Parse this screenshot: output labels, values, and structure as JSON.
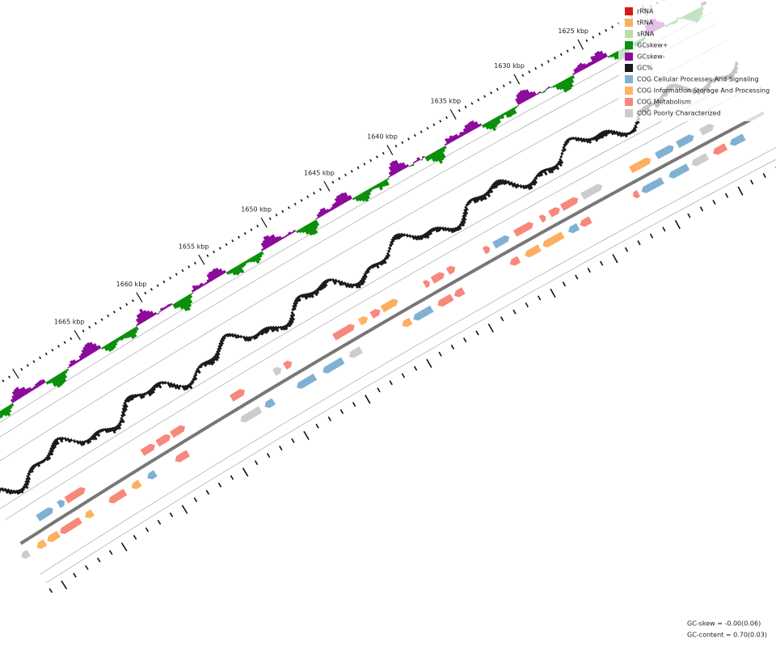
{
  "scale_labels": [
    "1625 kbp",
    "1630 kbp",
    "1635 kbp",
    "1640 kbp",
    "1645 kbp",
    "1650 kbp",
    "1655 kbp",
    "1660 kbp",
    "1665 kbp"
  ],
  "legend": [
    {
      "label": "rRNA",
      "color": "#d7191c"
    },
    {
      "label": "tRNA",
      "color": "#fdae61"
    },
    {
      "label": "sRNA",
      "color": "#b8e0a0"
    },
    {
      "label": "GCskew+",
      "color": "#0a8f0a"
    },
    {
      "label": "GCskew-",
      "color": "#8b0a9a"
    },
    {
      "label": "GC%",
      "color": "#1a1a1a"
    },
    {
      "label": "COG Cellular Processes And Signaling",
      "color": "#80b1d3"
    },
    {
      "label": "COG Information Storage And Processing",
      "color": "#fdb462"
    },
    {
      "label": "COG Metabolism",
      "color": "#f8877c"
    },
    {
      "label": "COG Poorly Characterized",
      "color": "#cccccc"
    }
  ],
  "stats": [
    "GC-skew = -0.00(0.06)",
    "GC-content = 0.70(0.03)"
  ]
}
